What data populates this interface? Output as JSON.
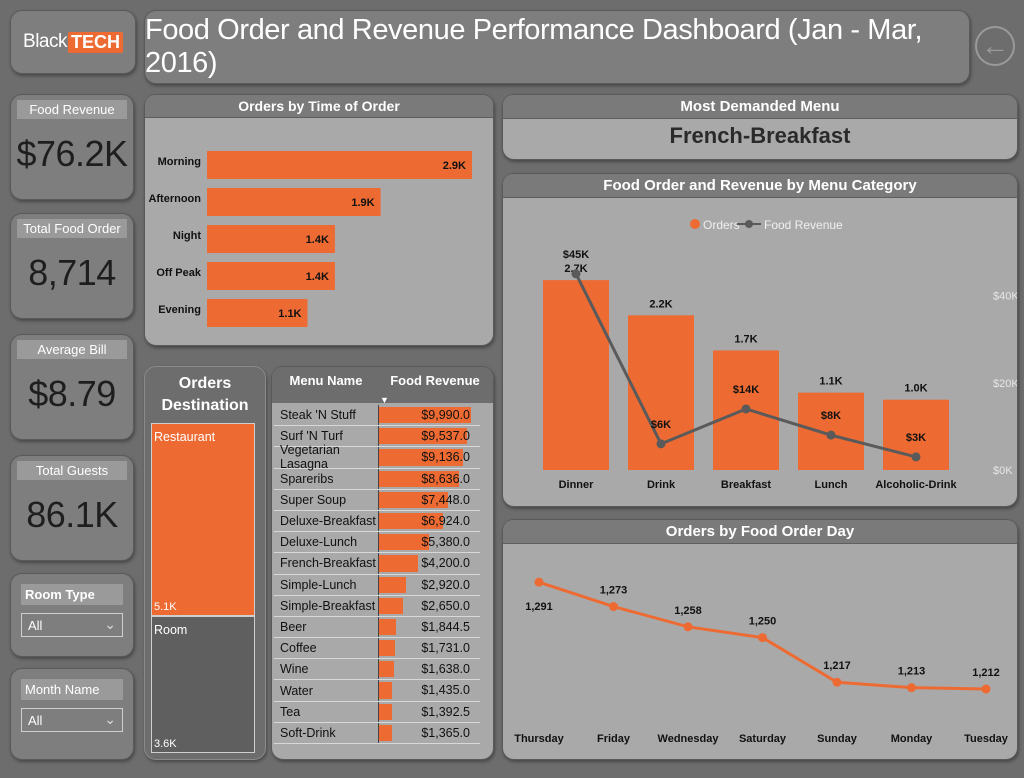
{
  "logo": {
    "part1": "Black",
    "part2": "TECH"
  },
  "title": "Food Order and Revenue Performance Dashboard (Jan - Mar, 2016)",
  "back_icon": "back-arrow-icon",
  "kpis": [
    {
      "label": "Food Revenue",
      "value": "$76.2K"
    },
    {
      "label": "Total Food Order",
      "value": "8,714"
    },
    {
      "label": "Average Bill",
      "value": "$8.79"
    },
    {
      "label": "Total Guests",
      "value": "86.1K"
    }
  ],
  "slicers": [
    {
      "label": "Room Type",
      "selected": "All"
    },
    {
      "label": "Month Name",
      "selected": "All"
    }
  ],
  "most_demanded": {
    "label": "Most Demanded Menu",
    "value": "French-Breakfast"
  },
  "destination": {
    "title_line1": "Orders",
    "title_line2": "Destination",
    "items": [
      {
        "name": "Restaurant",
        "label": "5.1K",
        "value": 5.1
      },
      {
        "name": "Room",
        "label": "3.6K",
        "value": 3.6
      }
    ]
  },
  "menu_table": {
    "col_name": "Menu Name",
    "col_revenue": "Food Revenue",
    "rows": [
      {
        "name": "Steak 'N Stuff",
        "revenue_label": "$9,990.0",
        "revenue": 9990
      },
      {
        "name": "Surf 'N Turf",
        "revenue_label": "$9,537.0",
        "revenue": 9537
      },
      {
        "name": "Vegetarian Lasagna",
        "revenue_label": "$9,136.0",
        "revenue": 9136
      },
      {
        "name": "Spareribs",
        "revenue_label": "$8,636.0",
        "revenue": 8636
      },
      {
        "name": "Super Soup",
        "revenue_label": "$7,448.0",
        "revenue": 7448
      },
      {
        "name": "Deluxe-Breakfast",
        "revenue_label": "$6,924.0",
        "revenue": 6924
      },
      {
        "name": "Deluxe-Lunch",
        "revenue_label": "$5,380.0",
        "revenue": 5380
      },
      {
        "name": "French-Breakfast",
        "revenue_label": "$4,200.0",
        "revenue": 4200
      },
      {
        "name": "Simple-Lunch",
        "revenue_label": "$2,920.0",
        "revenue": 2920
      },
      {
        "name": "Simple-Breakfast",
        "revenue_label": "$2,650.0",
        "revenue": 2650
      },
      {
        "name": "Beer",
        "revenue_label": "$1,844.5",
        "revenue": 1844.5
      },
      {
        "name": "Coffee",
        "revenue_label": "$1,731.0",
        "revenue": 1731
      },
      {
        "name": "Wine",
        "revenue_label": "$1,638.0",
        "revenue": 1638
      },
      {
        "name": "Water",
        "revenue_label": "$1,435.0",
        "revenue": 1435
      },
      {
        "name": "Tea",
        "revenue_label": "$1,392.5",
        "revenue": 1392.5
      },
      {
        "name": "Soft-Drink",
        "revenue_label": "$1,365.0",
        "revenue": 1365
      }
    ]
  },
  "chart_data": [
    {
      "type": "bar",
      "title": "Orders by Time of Order",
      "orientation": "horizontal",
      "categories": [
        "Morning",
        "Afternoon",
        "Night",
        "Off Peak",
        "Evening"
      ],
      "values": [
        2.9,
        1.9,
        1.4,
        1.4,
        1.1
      ],
      "labels": [
        "2.9K",
        "1.9K",
        "1.4K",
        "1.4K",
        "1.1K"
      ],
      "units": "thousands",
      "color": "#ed6b33"
    },
    {
      "type": "bar",
      "title": "Food Order and Revenue by Menu Category",
      "categories": [
        "Dinner",
        "Drink",
        "Breakfast",
        "Lunch",
        "Alcoholic-Drink"
      ],
      "legend": [
        "Orders",
        "Food Revenue"
      ],
      "series": [
        {
          "name": "Orders",
          "type": "bar",
          "values": [
            2.7,
            2.2,
            1.7,
            1.1,
            1.0
          ],
          "labels": [
            "2.7K",
            "2.2K",
            "1.7K",
            "1.1K",
            "1.0K"
          ],
          "color": "#ed6b33"
        },
        {
          "name": "Food Revenue",
          "type": "line",
          "values": [
            45,
            6,
            14,
            8,
            3
          ],
          "labels": [
            "$45K",
            "$6K",
            "$14K",
            "$8K",
            "$3K"
          ],
          "color": "#5a5a5a"
        }
      ],
      "y2_ticks": [
        "$0K",
        "$20K",
        "$40K"
      ],
      "y2lim": [
        0,
        50
      ],
      "ylim": [
        0,
        3.1
      ]
    },
    {
      "type": "line",
      "title": "Orders by Food Order Day",
      "categories": [
        "Thursday",
        "Friday",
        "Wednesday",
        "Saturday",
        "Sunday",
        "Monday",
        "Tuesday"
      ],
      "values": [
        1291,
        1273,
        1258,
        1250,
        1217,
        1213,
        1212
      ],
      "labels": [
        "1,291",
        "1,273",
        "1,258",
        "1,250",
        "1,217",
        "1,213",
        "1,212"
      ],
      "ylim": [
        1195,
        1300
      ],
      "color": "#ed6b33"
    }
  ]
}
